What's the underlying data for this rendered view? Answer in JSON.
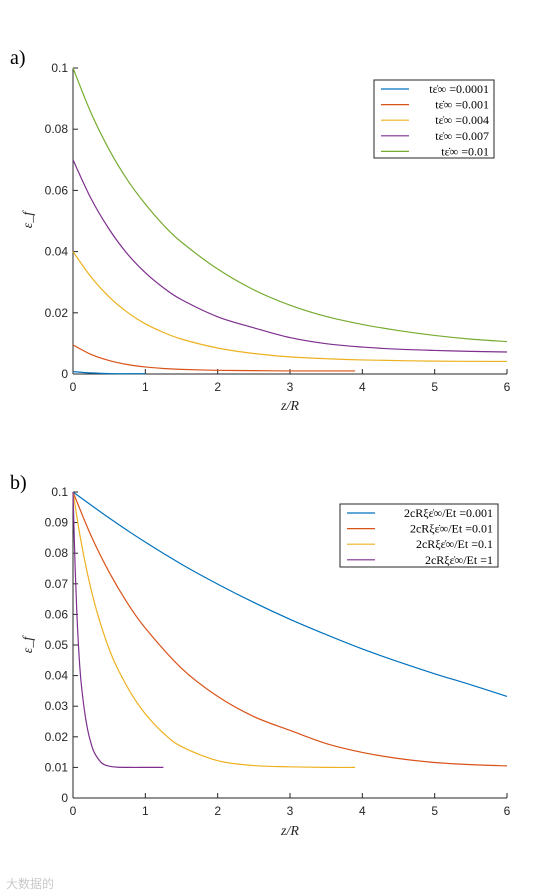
{
  "chart_data": [
    {
      "type": "line",
      "panel_label": "a)",
      "xlabel": "z/R",
      "ylabel": "ε_f",
      "xlim": [
        0,
        6
      ],
      "ylim": [
        0,
        0.1
      ],
      "xticks": [
        "0",
        "1",
        "2",
        "3",
        "4",
        "5",
        "6"
      ],
      "yticks": [
        "0",
        "0.02",
        "0.04",
        "0.06",
        "0.08",
        "0.1"
      ],
      "legend_position": "top-right",
      "series": [
        {
          "name": "tε̇∞ =0.0001",
          "color": "#0072BD",
          "x": [
            0,
            0.2,
            0.4,
            0.6,
            0.8,
            1.0
          ],
          "y": [
            0.0008,
            0.0004,
            0.0002,
            0.0001,
            0.0001,
            0.0001
          ]
        },
        {
          "name": "tε̇∞ =0.001",
          "color": "#D95319",
          "x": [
            0,
            0.25,
            0.5,
            0.75,
            1.0,
            1.25,
            1.5,
            2.0,
            2.5,
            3.0,
            3.5,
            3.9
          ],
          "y": [
            0.0095,
            0.0064,
            0.0044,
            0.0031,
            0.0023,
            0.0018,
            0.0015,
            0.0012,
            0.0011,
            0.001,
            0.001,
            0.001
          ]
        },
        {
          "name": "tε̇∞ =0.004",
          "color": "#EDB120",
          "x": [
            0,
            0.25,
            0.5,
            0.75,
            1.0,
            1.25,
            1.5,
            2.0,
            2.5,
            3.0,
            3.5,
            4.0,
            5.0,
            6.0
          ],
          "y": [
            0.04,
            0.0317,
            0.0252,
            0.0202,
            0.0164,
            0.0136,
            0.0114,
            0.0085,
            0.0067,
            0.0056,
            0.005,
            0.0046,
            0.0042,
            0.0041
          ]
        },
        {
          "name": "tε̇∞ =0.007",
          "color": "#7E2F8E",
          "x": [
            0,
            0.25,
            0.5,
            0.75,
            1.0,
            1.25,
            1.5,
            2.0,
            2.5,
            3.0,
            3.5,
            4.0,
            4.5,
            5.0,
            5.5,
            6.0
          ],
          "y": [
            0.07,
            0.0573,
            0.0473,
            0.0393,
            0.0331,
            0.0282,
            0.0243,
            0.0187,
            0.0151,
            0.0119,
            0.0099,
            0.0088,
            0.0081,
            0.0077,
            0.0074,
            0.0072
          ]
        },
        {
          "name": "tε̇∞ =0.01",
          "color": "#77AC30",
          "x": [
            0,
            0.25,
            0.5,
            0.75,
            1.0,
            1.25,
            1.5,
            2.0,
            2.5,
            3.0,
            3.5,
            4.0,
            4.5,
            5.0,
            5.5,
            6.0
          ],
          "y": [
            0.1,
            0.0853,
            0.0733,
            0.0635,
            0.0555,
            0.0487,
            0.0431,
            0.0343,
            0.0275,
            0.0225,
            0.0188,
            0.0162,
            0.0142,
            0.0126,
            0.0114,
            0.0106
          ]
        }
      ]
    },
    {
      "type": "line",
      "panel_label": "b)",
      "xlabel": "z/R",
      "ylabel": "ε_f",
      "xlim": [
        0,
        6
      ],
      "ylim": [
        0,
        0.1
      ],
      "xticks": [
        "0",
        "1",
        "2",
        "3",
        "4",
        "5",
        "6"
      ],
      "yticks": [
        "0",
        "0.01",
        "0.02",
        "0.03",
        "0.04",
        "0.05",
        "0.06",
        "0.07",
        "0.08",
        "0.09",
        "0.1"
      ],
      "legend_position": "top-right",
      "series": [
        {
          "name": "2cRξε̇∞/Et =0.001",
          "color": "#0072BD",
          "x": [
            0,
            0.5,
            1.0,
            1.5,
            2.0,
            2.5,
            3.0,
            3.5,
            4.0,
            4.5,
            5.0,
            5.5,
            6.0
          ],
          "y": [
            0.1,
            0.0915,
            0.0836,
            0.0764,
            0.0699,
            0.0639,
            0.0584,
            0.0534,
            0.0487,
            0.0445,
            0.0406,
            0.037,
            0.0332
          ]
        },
        {
          "name": "2cRξε̇∞/Et =0.01",
          "color": "#D95319",
          "x": [
            0,
            0.25,
            0.5,
            0.75,
            1.0,
            1.5,
            2.0,
            2.5,
            3.0,
            3.5,
            4.0,
            4.5,
            5.0,
            5.5,
            6.0
          ],
          "y": [
            0.1,
            0.0857,
            0.0738,
            0.0638,
            0.0555,
            0.0424,
            0.0332,
            0.0266,
            0.0221,
            0.0178,
            0.0149,
            0.0129,
            0.0116,
            0.0109,
            0.0105
          ]
        },
        {
          "name": "2cRξε̇∞/Et =0.1",
          "color": "#EDB120",
          "x": [
            0,
            0.1,
            0.2,
            0.3,
            0.4,
            0.5,
            0.6,
            0.8,
            1.0,
            1.25,
            1.5,
            2.0,
            2.5,
            3.0,
            3.5,
            3.9
          ],
          "y": [
            0.1,
            0.0853,
            0.0733,
            0.0635,
            0.0555,
            0.0487,
            0.0431,
            0.0343,
            0.0275,
            0.0212,
            0.0168,
            0.0122,
            0.0106,
            0.0102,
            0.01,
            0.01
          ]
        },
        {
          "name": "2cRξε̇∞/Et =1",
          "color": "#7E2F8E",
          "x": [
            0,
            0.03,
            0.06,
            0.1,
            0.15,
            0.2,
            0.25,
            0.3,
            0.4,
            0.5,
            0.6,
            0.8,
            1.0,
            1.25
          ],
          "y": [
            0.1,
            0.075,
            0.057,
            0.041,
            0.03,
            0.0226,
            0.0178,
            0.0146,
            0.0114,
            0.0104,
            0.0101,
            0.01,
            0.01,
            0.01
          ]
        }
      ]
    }
  ],
  "watermark": "大数据的"
}
